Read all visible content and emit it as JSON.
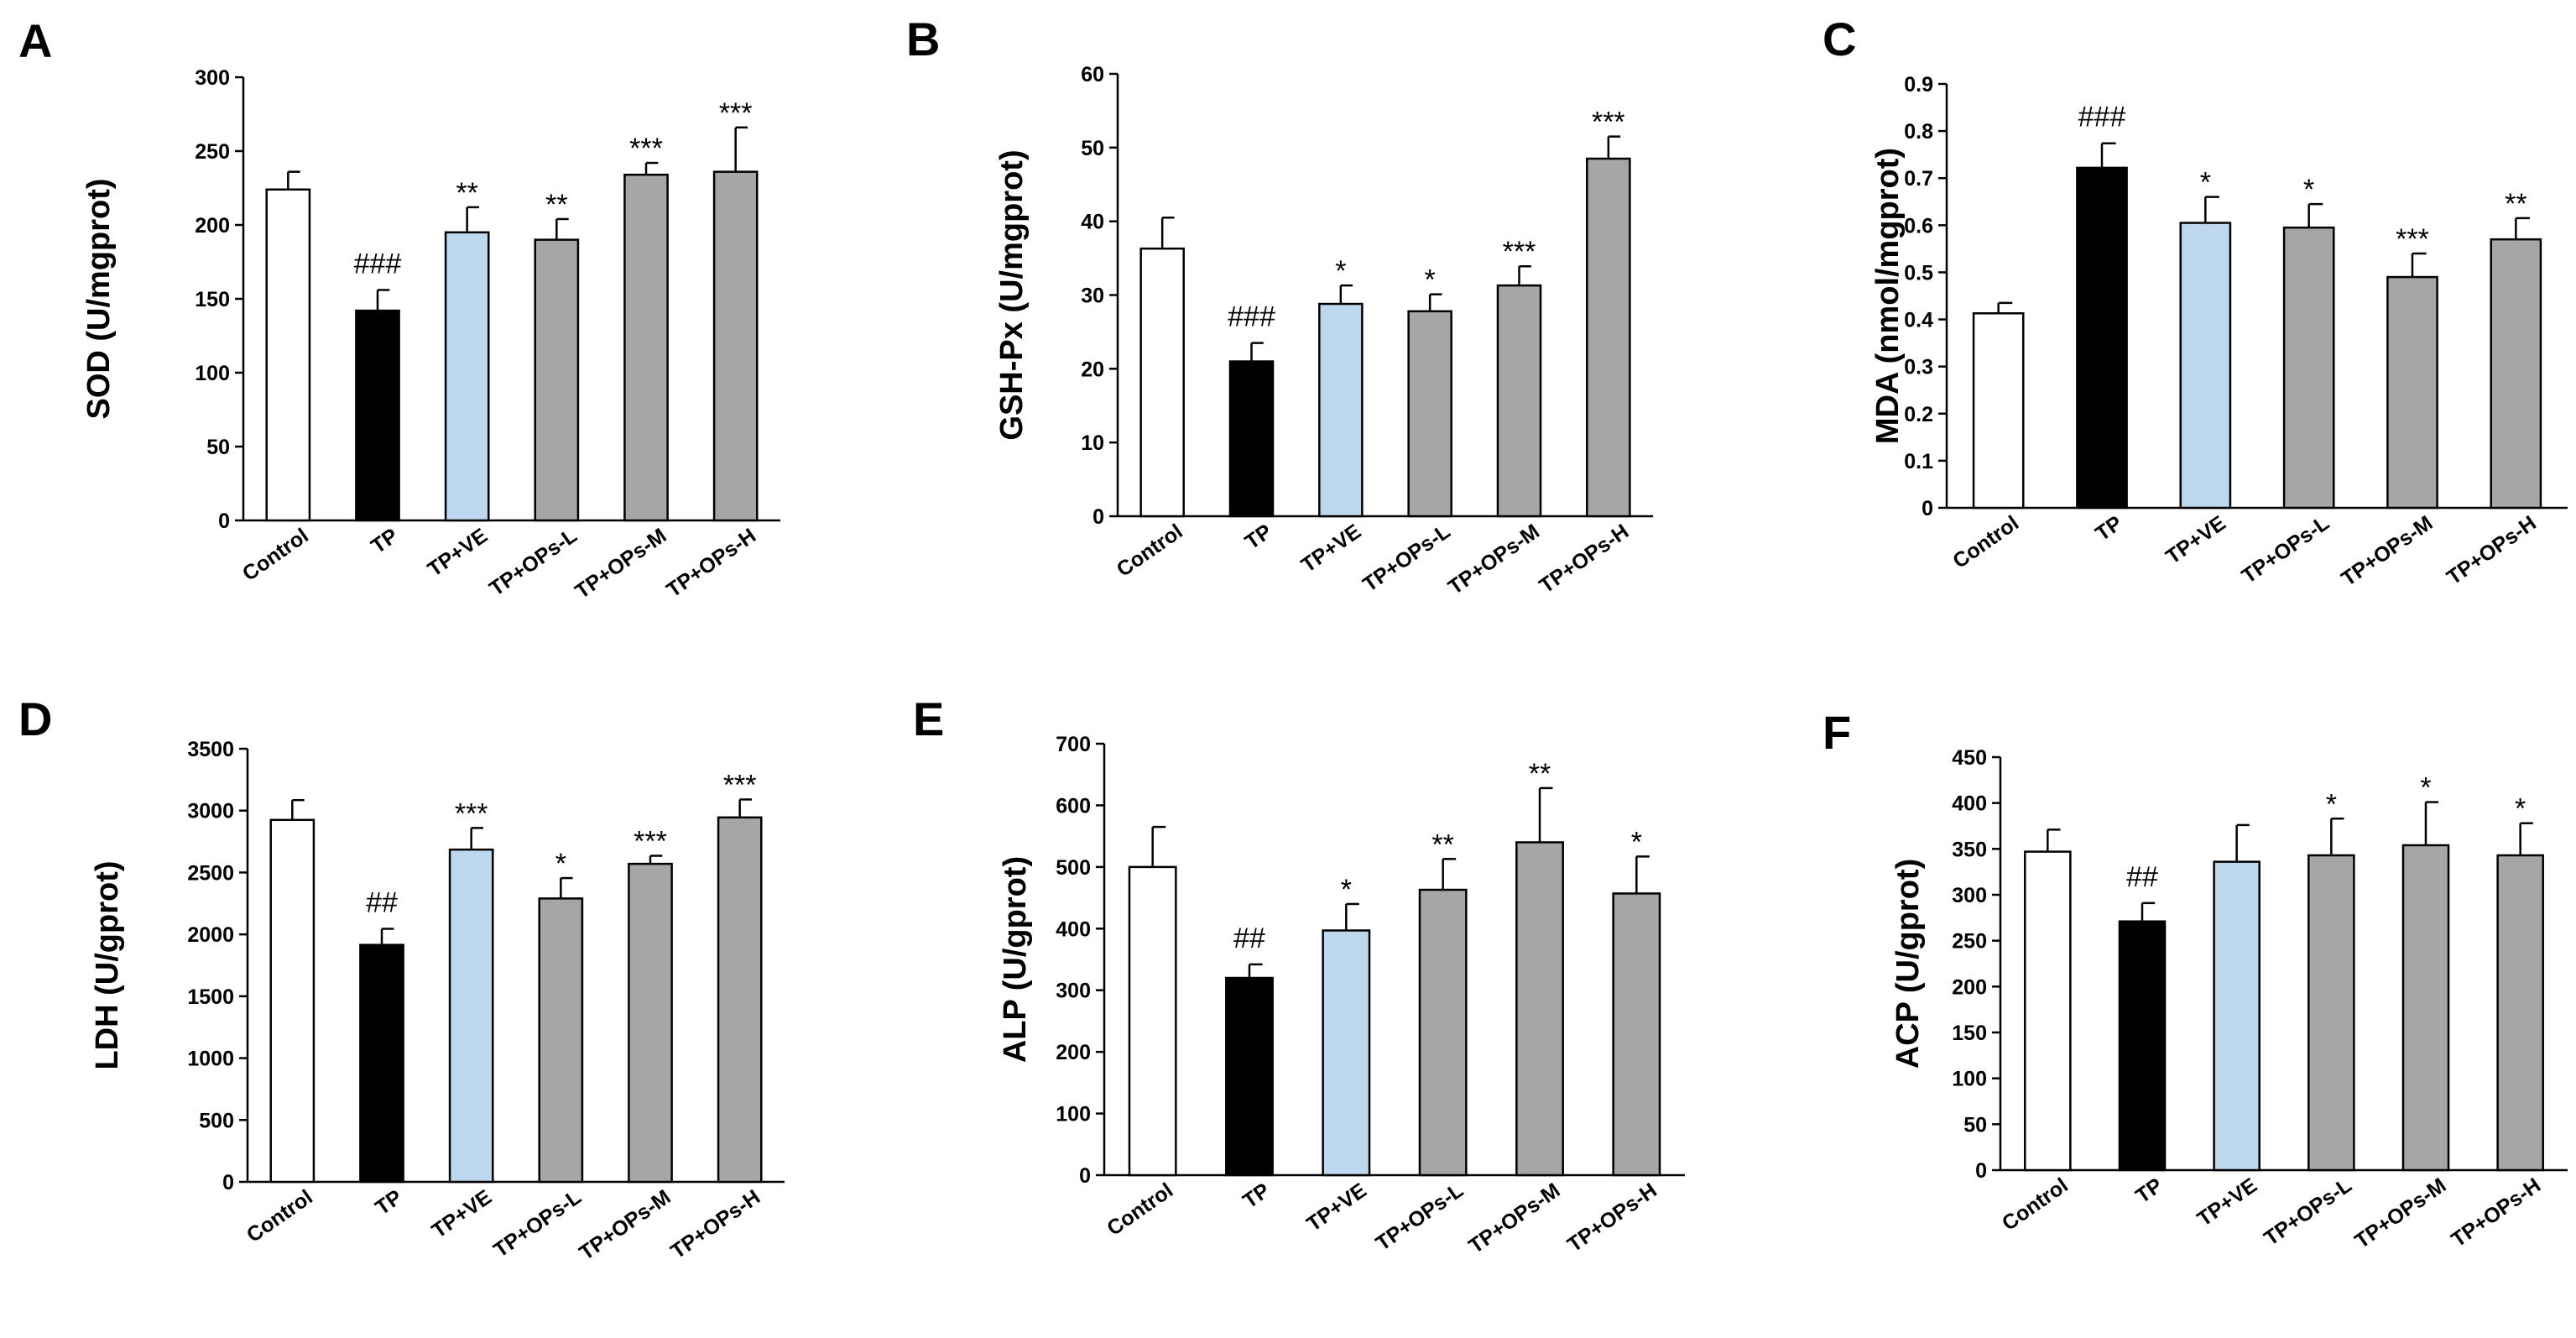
{
  "figure": {
    "categories": [
      "Control",
      "TP",
      "TP+VE",
      "TP+OPs-L",
      "TP+OPs-M",
      "TP+OPs-H"
    ],
    "colors": [
      "#ffffff",
      "#000000",
      "#bdd7ee",
      "#a6a6a6",
      "#a6a6a6",
      "#a6a6a6"
    ],
    "axis_color": "#000000",
    "sig_color_dark": "#000000",
    "sig_color_gray": "#555555"
  },
  "chart_data": [
    {
      "panel": "A",
      "type": "bar",
      "categories": [
        "Control",
        "TP",
        "TP+VE",
        "TP+OPs-L",
        "TP+OPs-M",
        "TP+OPs-H"
      ],
      "values": [
        224,
        142,
        195,
        190,
        234,
        236
      ],
      "errors": [
        12,
        14,
        17,
        14,
        8,
        30
      ],
      "annotations": [
        "",
        "###",
        "**",
        "**",
        "***",
        "***"
      ],
      "ylabel": "SOD (U/mgprot)",
      "ylim": [
        0,
        300
      ],
      "yticks": [
        "0",
        "50",
        "100",
        "150",
        "200",
        "250",
        "300"
      ]
    },
    {
      "panel": "B",
      "type": "bar",
      "categories": [
        "Control",
        "TP",
        "TP+VE",
        "TP+OPs-L",
        "TP+OPs-M",
        "TP+OPs-H"
      ],
      "values": [
        36.3,
        21.0,
        28.8,
        27.8,
        31.3,
        48.5
      ],
      "errors": [
        4.2,
        2.5,
        2.5,
        2.3,
        2.6,
        3.0
      ],
      "annotations": [
        "",
        "###",
        "*",
        "*",
        "***",
        "***"
      ],
      "ylabel": "GSH-Px (U/mgprot)",
      "ylim": [
        0,
        60
      ],
      "yticks": [
        "0",
        "10",
        "20",
        "30",
        "40",
        "50",
        "60"
      ]
    },
    {
      "panel": "C",
      "type": "bar",
      "categories": [
        "Control",
        "TP",
        "TP+VE",
        "TP+OPs-L",
        "TP+OPs-M",
        "TP+OPs-H"
      ],
      "values": [
        0.413,
        0.722,
        0.605,
        0.595,
        0.49,
        0.57
      ],
      "errors": [
        0.022,
        0.052,
        0.055,
        0.05,
        0.05,
        0.045
      ],
      "annotations": [
        "",
        "###",
        "*",
        "*",
        "***",
        "**"
      ],
      "ylabel": "MDA (nmol/mgprot)",
      "ylim": [
        0,
        0.9
      ],
      "yticks": [
        "0",
        "0.1",
        "0.2",
        "0.3",
        "0.4",
        "0.5",
        "0.6",
        "0.7",
        "0.8",
        "0.9"
      ]
    },
    {
      "panel": "D",
      "type": "bar",
      "categories": [
        "Control",
        "TP",
        "TP+VE",
        "TP+OPs-L",
        "TP+OPs-M",
        "TP+OPs-H"
      ],
      "values": [
        2925,
        1915,
        2685,
        2290,
        2570,
        2945
      ],
      "errors": [
        160,
        130,
        175,
        165,
        65,
        145
      ],
      "annotations": [
        "",
        "##",
        "***",
        "*",
        "***",
        "***"
      ],
      "ylabel": "LDH (U/gprot)",
      "ylim": [
        0,
        3500
      ],
      "yticks": [
        "0",
        "500",
        "1000",
        "1500",
        "2000",
        "2500",
        "3000",
        "3500"
      ]
    },
    {
      "panel": "E",
      "type": "bar",
      "categories": [
        "Control",
        "TP",
        "TP+VE",
        "TP+OPs-L",
        "TP+OPs-M",
        "TP+OPs-H"
      ],
      "values": [
        500,
        320,
        397,
        463,
        540,
        457
      ],
      "errors": [
        65,
        22,
        43,
        50,
        88,
        60
      ],
      "annotations": [
        "",
        "##",
        "*",
        "**",
        "**",
        "*"
      ],
      "ylabel": "ALP (U/gprot)",
      "ylim": [
        0,
        700
      ],
      "yticks": [
        "0",
        "100",
        "200",
        "300",
        "400",
        "500",
        "600",
        "700"
      ]
    },
    {
      "panel": "F",
      "type": "bar",
      "categories": [
        "Control",
        "TP",
        "TP+VE",
        "TP+OPs-L",
        "TP+OPs-M",
        "TP+OPs-H"
      ],
      "values": [
        347,
        271,
        336,
        343,
        354,
        343
      ],
      "errors": [
        24,
        20,
        40,
        40,
        47,
        35
      ],
      "annotations": [
        "",
        "##",
        "",
        "*",
        "*",
        "*"
      ],
      "ylabel": "ACP (U/gprot)",
      "ylim": [
        0,
        450
      ],
      "yticks": [
        "0",
        "50",
        "100",
        "150",
        "200",
        "250",
        "300",
        "350",
        "400",
        "450"
      ]
    }
  ]
}
